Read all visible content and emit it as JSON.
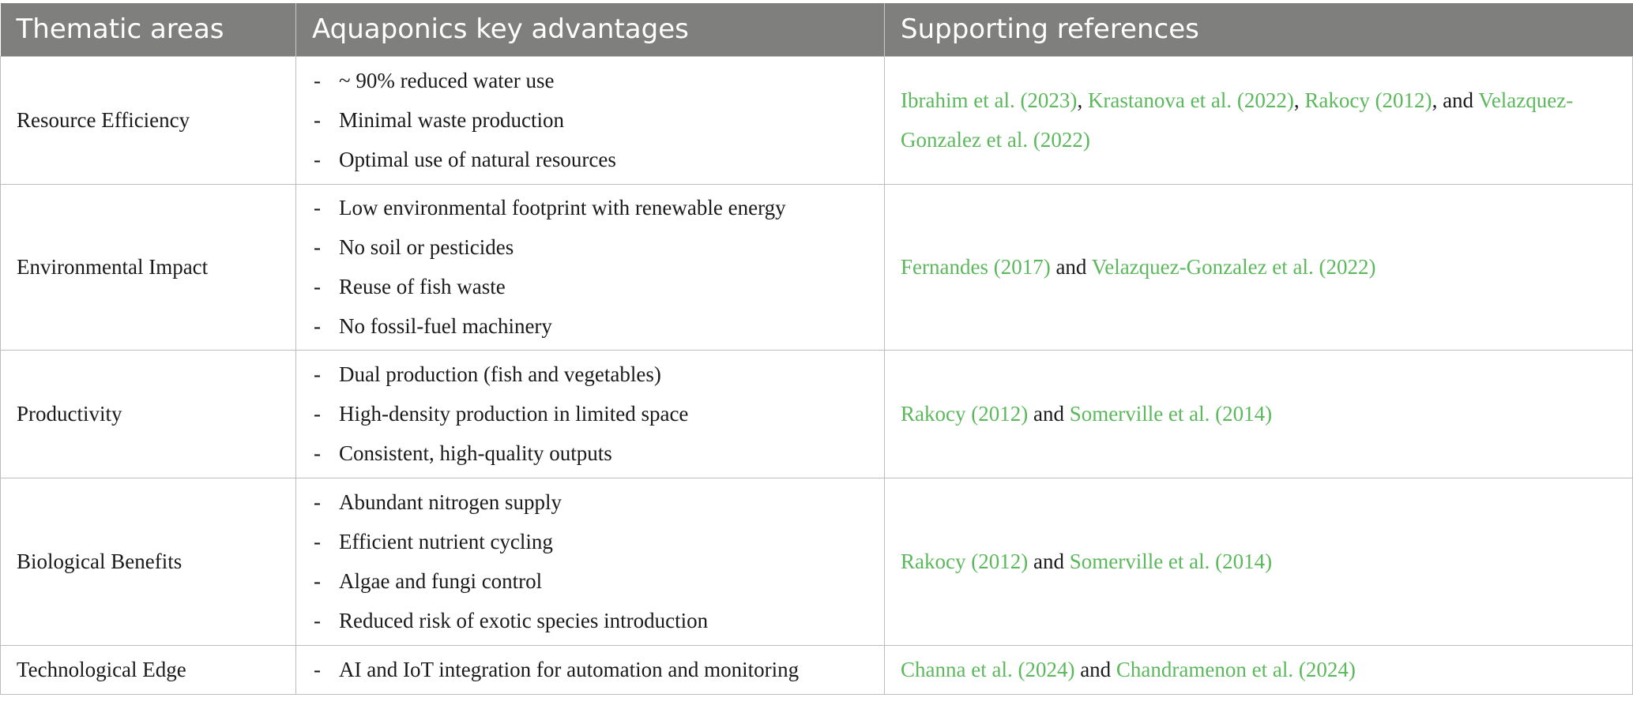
{
  "table": {
    "headers": [
      "Thematic areas",
      "Aquaponics key advantages",
      "Supporting references"
    ],
    "rows": [
      {
        "area": "Resource Efficiency",
        "advantages": [
          "~ 90% reduced water use",
          "Minimal waste production",
          "Optimal use of natural resources"
        ],
        "references": [
          {
            "text": "Ibrahim et al. (2023)",
            "link": true
          },
          {
            "text": ", ",
            "link": false
          },
          {
            "text": "Krastanova et al. (2022)",
            "link": true
          },
          {
            "text": ", ",
            "link": false
          },
          {
            "text": "Rakocy (2012)",
            "link": true
          },
          {
            "text": ", and ",
            "link": false
          },
          {
            "text": "Velazquez-Gonzalez et al. (2022)",
            "link": true
          }
        ]
      },
      {
        "area": "Environmental Impact",
        "advantages": [
          "Low environmental footprint with renewable energy",
          "No soil or pesticides",
          "Reuse of fish waste",
          "No fossil-fuel machinery"
        ],
        "references": [
          {
            "text": "Fernandes (2017)",
            "link": true
          },
          {
            "text": " and ",
            "link": false
          },
          {
            "text": "Velazquez-Gonzalez et al. (2022)",
            "link": true
          }
        ]
      },
      {
        "area": "Productivity",
        "advantages": [
          "Dual production (fish and vegetables)",
          "High-density production in limited space",
          "Consistent, high-quality outputs"
        ],
        "references": [
          {
            "text": "Rakocy (2012)",
            "link": true
          },
          {
            "text": " and ",
            "link": false
          },
          {
            "text": "Somerville et al. (2014)",
            "link": true
          }
        ]
      },
      {
        "area": "Biological Benefits",
        "advantages": [
          "Abundant nitrogen supply",
          "Efficient nutrient cycling",
          "Algae and fungi control",
          "Reduced risk of exotic species introduction"
        ],
        "references": [
          {
            "text": "Rakocy (2012)",
            "link": true
          },
          {
            "text": " and ",
            "link": false
          },
          {
            "text": "Somerville et al. (2014)",
            "link": true
          }
        ]
      },
      {
        "area": "Technological Edge",
        "advantages": [
          "AI and IoT integration for automation and monitoring"
        ],
        "references": [
          {
            "text": "Channa et al. (2024)",
            "link": true
          },
          {
            "text": " and ",
            "link": false
          },
          {
            "text": "Chandramenon et al. (2024)",
            "link": true
          }
        ]
      }
    ]
  },
  "colors": {
    "header_bg": "#7f807e",
    "reference_link": "#5cb85c"
  }
}
